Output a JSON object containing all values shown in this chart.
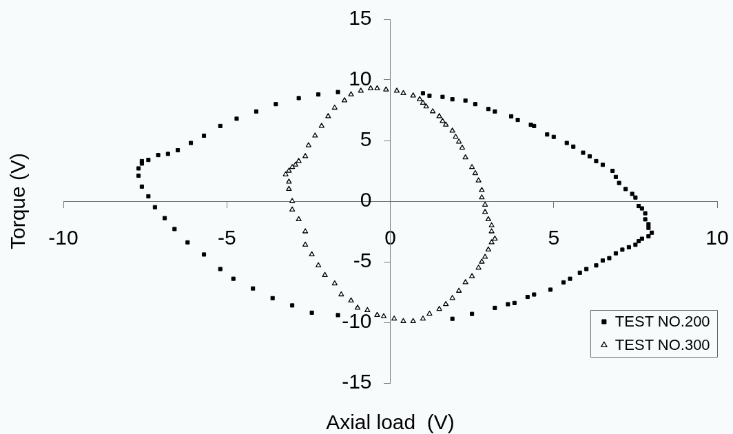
{
  "chart_data": {
    "type": "scatter",
    "xlabel": "Axial load  (V)",
    "ylabel": "Torque (V)",
    "xlim": [
      -10,
      10
    ],
    "ylim": [
      -15,
      15
    ],
    "xticks": [
      -10,
      -5,
      0,
      5,
      10
    ],
    "yticks": [
      -15,
      -10,
      -5,
      0,
      5,
      10,
      15
    ],
    "legend": "bottom right",
    "series": [
      {
        "name": "TEST NO.200",
        "color": "#000000",
        "marker": "square",
        "x": [
          7.5,
          7.4,
          7.2,
          7.0,
          6.9,
          6.8,
          6.5,
          6.3,
          6.1,
          5.9,
          5.6,
          5.4,
          5.0,
          4.8,
          4.4,
          4.3,
          3.9,
          3.7,
          3.2,
          3.0,
          2.6,
          2.3,
          1.9,
          1.6,
          1.2,
          1.0,
          -1.6,
          -2.2,
          -2.8,
          -3.5,
          -4.1,
          -4.7,
          -5.2,
          -5.7,
          -6.1,
          -6.5,
          -6.8,
          -7.1,
          -7.4,
          -7.6,
          -7.6,
          -7.7,
          -7.7,
          -7.6,
          -7.4,
          -7.2,
          -6.9,
          -6.6,
          -6.2,
          -5.7,
          -5.2,
          -4.8,
          -4.2,
          -3.6,
          -3.0,
          -2.4,
          -1.6,
          1.9,
          2.5,
          3.2,
          3.6,
          3.8,
          4.2,
          4.4,
          4.9,
          5.3,
          5.5,
          5.8,
          6.0,
          6.3,
          6.5,
          6.7,
          6.9,
          7.1,
          7.3,
          7.5,
          7.6,
          7.7,
          7.9,
          8.0,
          7.9,
          7.9,
          7.8,
          7.8,
          7.7,
          7.6
        ],
        "values": [
          0.3,
          0.6,
          1.0,
          1.5,
          2.0,
          2.5,
          3.0,
          3.3,
          3.7,
          4.0,
          4.5,
          4.8,
          5.3,
          5.5,
          6.2,
          6.3,
          6.7,
          7.0,
          7.4,
          7.6,
          8.0,
          8.3,
          8.4,
          8.6,
          8.7,
          8.9,
          9.0,
          8.8,
          8.5,
          8.0,
          7.4,
          6.8,
          6.2,
          5.4,
          4.8,
          4.2,
          3.9,
          3.8,
          3.4,
          3.3,
          3.1,
          2.7,
          2.1,
          1.2,
          0.4,
          -0.5,
          -1.4,
          -2.3,
          -3.4,
          -4.4,
          -5.6,
          -6.4,
          -7.2,
          -8.0,
          -8.6,
          -9.2,
          -9.4,
          -9.7,
          -9.3,
          -8.8,
          -8.5,
          -8.4,
          -7.9,
          -7.7,
          -7.3,
          -6.7,
          -6.4,
          -5.9,
          -5.6,
          -5.3,
          -4.9,
          -4.7,
          -4.3,
          -4.0,
          -3.8,
          -3.6,
          -3.3,
          -3.1,
          -2.9,
          -2.6,
          -2.2,
          -1.9,
          -1.5,
          -1.0,
          -0.6,
          -0.4
        ]
      },
      {
        "name": "TEST NO.300",
        "color": "#000000",
        "marker": "triangle",
        "x": [
          -0.13,
          0.2,
          0.4,
          0.7,
          0.9,
          1.0,
          1.1,
          1.3,
          1.5,
          1.6,
          1.7,
          1.9,
          2.0,
          2.1,
          2.2,
          2.3,
          2.5,
          2.6,
          2.7,
          2.8,
          2.8,
          2.9,
          2.9,
          3.0,
          3.1,
          3.1,
          3.2,
          3.1,
          3.0,
          2.9,
          2.8,
          2.7,
          2.5,
          2.3,
          2.1,
          1.9,
          1.7,
          1.5,
          1.2,
          1.0,
          0.7,
          0.4,
          0.12,
          -0.2,
          -0.4,
          -0.7,
          -1.0,
          -1.2,
          -1.5,
          -1.7,
          -2.0,
          -2.2,
          -2.4,
          -2.6,
          -2.6,
          -2.8,
          -3.0,
          -3.0,
          -3.1,
          -3.1,
          -3.2,
          -3.1,
          -3.0,
          -2.9,
          -2.8,
          -2.6,
          -2.5,
          -2.3,
          -2.1,
          -1.9,
          -1.7,
          -1.4,
          -1.2,
          -0.9,
          -0.6,
          -0.4
        ],
        "values": [
          9.2,
          9.1,
          8.9,
          8.7,
          8.4,
          8.1,
          7.8,
          7.4,
          7.0,
          6.6,
          6.3,
          5.8,
          5.3,
          4.9,
          4.4,
          3.6,
          2.8,
          2.3,
          1.7,
          0.9,
          0.3,
          -0.3,
          -0.9,
          -1.5,
          -2.0,
          -2.5,
          -3.1,
          -3.4,
          -4.0,
          -4.6,
          -5.0,
          -5.5,
          -6.2,
          -6.7,
          -7.4,
          -8.0,
          -8.5,
          -8.9,
          -9.3,
          -9.7,
          -9.9,
          -9.9,
          -9.7,
          -9.5,
          -9.4,
          -9.0,
          -8.8,
          -8.2,
          -7.7,
          -6.8,
          -6.1,
          -5.3,
          -4.4,
          -3.6,
          -2.5,
          -1.5,
          -0.7,
          0.0,
          1.0,
          1.6,
          2.2,
          2.5,
          2.8,
          3.0,
          3.3,
          3.7,
          4.6,
          5.4,
          6.2,
          7.0,
          7.7,
          8.3,
          8.8,
          9.1,
          9.3,
          9.3
        ]
      }
    ]
  }
}
